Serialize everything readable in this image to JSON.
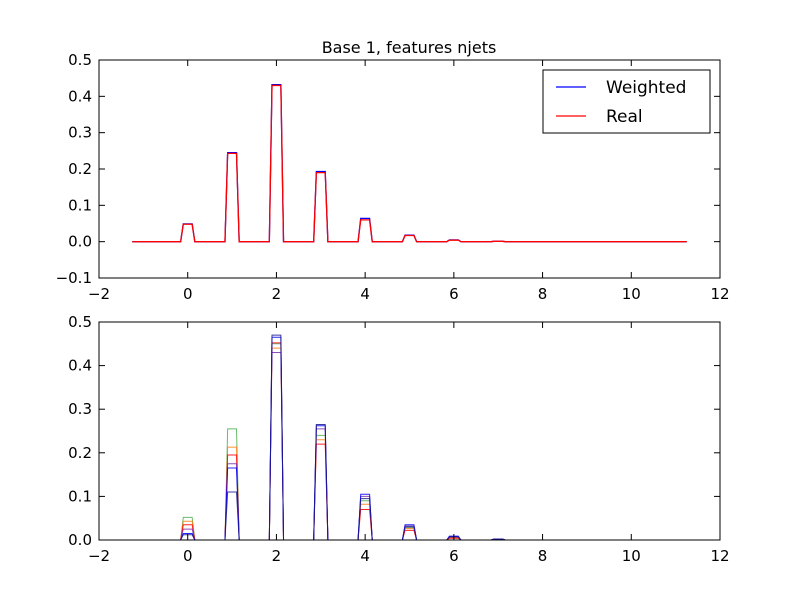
{
  "figure": {
    "title": "Base 1, features njets"
  },
  "colors": {
    "weighted": "#0000ff",
    "real": "#ff0000",
    "sample_green": "#4caf50",
    "sample_orange": "#ff7f0e",
    "sample_purple": "#7b2fa8",
    "sample_navy": "#1a1a8c"
  },
  "chart_data": [
    {
      "type": "line",
      "title": "Base 1, features njets",
      "xlabel": "",
      "ylabel": "",
      "xlim": [
        -2,
        12
      ],
      "ylim": [
        -0.1,
        0.5
      ],
      "xticks": [
        -2,
        0,
        2,
        4,
        6,
        8,
        10,
        12
      ],
      "yticks": [
        -0.1,
        0.0,
        0.1,
        0.2,
        0.3,
        0.4,
        0.5
      ],
      "xtick_labels": [
        "−2",
        "0",
        "2",
        "4",
        "6",
        "8",
        "10",
        "12"
      ],
      "ytick_labels": [
        "−0.1",
        "0.0",
        "0.1",
        "0.2",
        "0.3",
        "0.4",
        "0.5"
      ],
      "legend": {
        "position": "top-right",
        "entries": [
          "Weighted",
          "Real"
        ]
      },
      "grid": false,
      "x_range": [
        -1.25,
        11.25
      ],
      "peak_centers": [
        0,
        1,
        2,
        3,
        4,
        5,
        6,
        7
      ],
      "series": [
        {
          "name": "Weighted",
          "color": "#0000ff",
          "peaks": [
            0.049,
            0.245,
            0.432,
            0.193,
            0.064,
            0.018,
            0.005,
            0.001
          ]
        },
        {
          "name": "Real",
          "color": "#ff0000",
          "peaks": [
            0.048,
            0.243,
            0.43,
            0.19,
            0.06,
            0.017,
            0.004,
            0.001
          ]
        }
      ]
    },
    {
      "type": "line",
      "xlim": [
        -2,
        12
      ],
      "ylim": [
        0.0,
        0.5
      ],
      "xticks": [
        -2,
        0,
        2,
        4,
        6,
        8,
        10,
        12
      ],
      "yticks": [
        0.0,
        0.1,
        0.2,
        0.3,
        0.4,
        0.5
      ],
      "xtick_labels": [
        "−2",
        "0",
        "2",
        "4",
        "6",
        "8",
        "10",
        "12"
      ],
      "ytick_labels": [
        "0.0",
        "0.1",
        "0.2",
        "0.3",
        "0.4",
        "0.5"
      ],
      "grid": false,
      "x_range": [
        -1.25,
        11.25
      ],
      "peak_centers": [
        0,
        1,
        2,
        3,
        4,
        5,
        6,
        7
      ],
      "series": [
        {
          "color": "#4caf50",
          "peaks": [
            0.052,
            0.255,
            0.45,
            0.24,
            0.09,
            0.028,
            0.006,
            0.002
          ]
        },
        {
          "color": "#ff7f0e",
          "peaks": [
            0.043,
            0.213,
            0.44,
            0.23,
            0.082,
            0.026,
            0.005,
            0.002
          ]
        },
        {
          "color": "#ff0000",
          "peaks": [
            0.035,
            0.195,
            0.452,
            0.22,
            0.07,
            0.022,
            0.004,
            0.001
          ]
        },
        {
          "color": "#7b2fa8",
          "peaks": [
            0.025,
            0.175,
            0.43,
            0.255,
            0.1,
            0.032,
            0.008,
            0.002
          ]
        },
        {
          "color": "#0000ff",
          "peaks": [
            0.015,
            0.165,
            0.465,
            0.262,
            0.105,
            0.035,
            0.009,
            0.002
          ]
        },
        {
          "color": "#1a1a8c",
          "peaks": [
            0.012,
            0.11,
            0.47,
            0.265,
            0.095,
            0.03,
            0.007,
            0.002
          ]
        }
      ]
    }
  ]
}
